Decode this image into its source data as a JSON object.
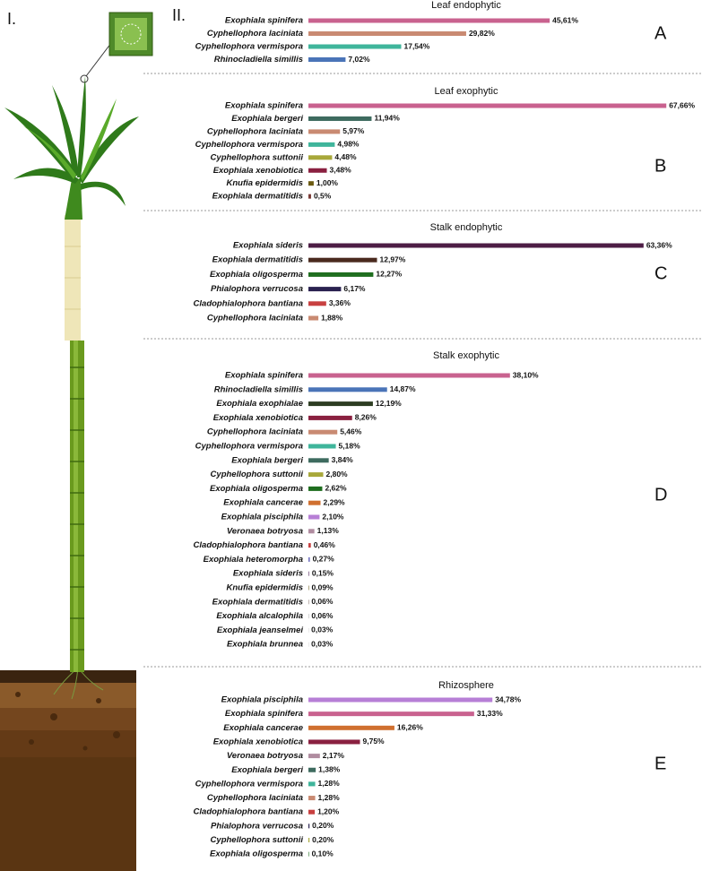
{
  "figure": {
    "left_label": "I.",
    "right_label": "II."
  },
  "chart_data": [
    {
      "type": "bar",
      "orientation": "horizontal",
      "title": "Leaf endophytic",
      "panel": "A",
      "categories": [
        "Exophiala spinifera",
        "Cyphellophora laciniata",
        "Cyphellophora vermispora",
        "Rhinocladiella simillis"
      ],
      "values": [
        45.61,
        29.82,
        17.54,
        7.02
      ],
      "value_labels": [
        "45,61%",
        "29,82%",
        "17,54%",
        "7,02%"
      ],
      "colors": [
        "#c9628f",
        "#c98a72",
        "#3fb59b",
        "#4a74b8"
      ]
    },
    {
      "type": "bar",
      "orientation": "horizontal",
      "title": "Leaf exophytic",
      "panel": "B",
      "categories": [
        "Exophiala spinifera",
        "Exophiala bergeri",
        "Cyphellophora laciniata",
        "Cyphellophora vermispora",
        "Cyphellophora suttonii",
        "Exophiala xenobiotica",
        "Knufia epidermidis",
        "Exophiala dermatitidis"
      ],
      "values": [
        67.66,
        11.94,
        5.97,
        4.98,
        4.48,
        3.48,
        1.0,
        0.5
      ],
      "value_labels": [
        "67,66%",
        "11,94%",
        "5,97%",
        "4,98%",
        "4,48%",
        "3,48%",
        "1,00%",
        "0,5%"
      ],
      "colors": [
        "#c9628f",
        "#3e6b5f",
        "#c98a72",
        "#3fb59b",
        "#a8a83a",
        "#8a2040",
        "#6b5a10",
        "#7a3a35"
      ]
    },
    {
      "type": "bar",
      "orientation": "horizontal",
      "title": "Stalk endophytic",
      "panel": "C",
      "categories": [
        "Exophiala sideris",
        "Exophiala dermatitidis",
        "Exophiala oligosperma",
        "Phialophora verrucosa",
        "Cladophialophora bantiana",
        "Cyphellophora laciniata"
      ],
      "values": [
        63.36,
        12.97,
        12.27,
        6.17,
        3.36,
        1.88
      ],
      "value_labels": [
        "63,36%",
        "12,97%",
        "12,27%",
        "6,17%",
        "3,36%",
        "1,88%"
      ],
      "colors": [
        "#4d1d45",
        "#4a2a1e",
        "#1f6e1f",
        "#2a2250",
        "#c84040",
        "#c98a72"
      ]
    },
    {
      "type": "bar",
      "orientation": "horizontal",
      "title": "Stalk exophytic",
      "panel": "D",
      "categories": [
        "Exophiala spinifera",
        "Rhinocladiella simillis",
        "Exophiala exophialae",
        "Exophiala xenobiotica",
        "Cyphellophora laciniata",
        "Cyphellophora vermispora",
        "Exophiala bergeri",
        "Cyphellophora suttonii",
        "Exophiala oligosperma",
        "Exophiala cancerae",
        "Exophiala pisciphila",
        "Veronaea botryosa",
        "Cladophialophora bantiana",
        "Exophiala heteromorpha",
        "Exophiala sideris",
        "Knufia epidermidis",
        "Exophiala dermatitidis",
        "Exophiala alcalophila",
        "Exophiala jeanselmei",
        "Exophiala brunnea"
      ],
      "values": [
        38.1,
        14.87,
        12.19,
        8.26,
        5.46,
        5.18,
        3.84,
        2.8,
        2.62,
        2.29,
        2.1,
        1.13,
        0.46,
        0.27,
        0.15,
        0.09,
        0.06,
        0.06,
        0.03,
        0.03
      ],
      "value_labels": [
        "38,10%",
        "14,87%",
        "12,19%",
        "8,26%",
        "5,46%",
        "5,18%",
        "3,84%",
        "2,80%",
        "2,62%",
        "2,29%",
        "2,10%",
        "1,13%",
        "0,46%",
        "0,27%",
        "0,15%",
        "0,09%",
        "0,06%",
        "0,06%",
        "0,03%",
        "0,03%"
      ],
      "colors": [
        "#c9628f",
        "#4a74b8",
        "#2d3d22",
        "#8a2040",
        "#c98a72",
        "#3fb59b",
        "#3e6b5f",
        "#a8a83a",
        "#1f6e1f",
        "#d07030",
        "#b77fd6",
        "#b08ca0",
        "#c84040",
        "#7070c0",
        "#8a6a90",
        "#6b5a10",
        "#4a2a1e",
        "#888888",
        "#888888",
        "#888888"
      ]
    },
    {
      "type": "bar",
      "orientation": "horizontal",
      "title": "Rhizosphere",
      "panel": "E",
      "categories": [
        "Exophiala pisciphila",
        "Exophiala spinifera",
        "Exophiala cancerae",
        "Exophiala xenobiotica",
        "Veronaea botryosa",
        "Exophiala bergeri",
        "Cyphellophora vermispora",
        "Cyphellophora laciniata",
        "Cladophialophora bantiana",
        "Phialophora verrucosa",
        "Cyphellophora suttonii",
        "Exophiala oligosperma"
      ],
      "values": [
        34.78,
        31.33,
        16.26,
        9.75,
        2.17,
        1.38,
        1.28,
        1.28,
        1.2,
        0.2,
        0.2,
        0.1
      ],
      "value_labels": [
        "34,78%",
        "31,33%",
        "16,26%",
        "9,75%",
        "2,17%",
        "1,38%",
        "1,28%",
        "1,28%",
        "1,20%",
        "0,20%",
        "0,20%",
        "0,10%"
      ],
      "colors": [
        "#b77fd6",
        "#c9628f",
        "#d07030",
        "#8a2040",
        "#b08ca0",
        "#3e6b5f",
        "#3fb59b",
        "#c98a72",
        "#c84040",
        "#2a2250",
        "#a8a83a",
        "#1f6e1f"
      ]
    }
  ]
}
